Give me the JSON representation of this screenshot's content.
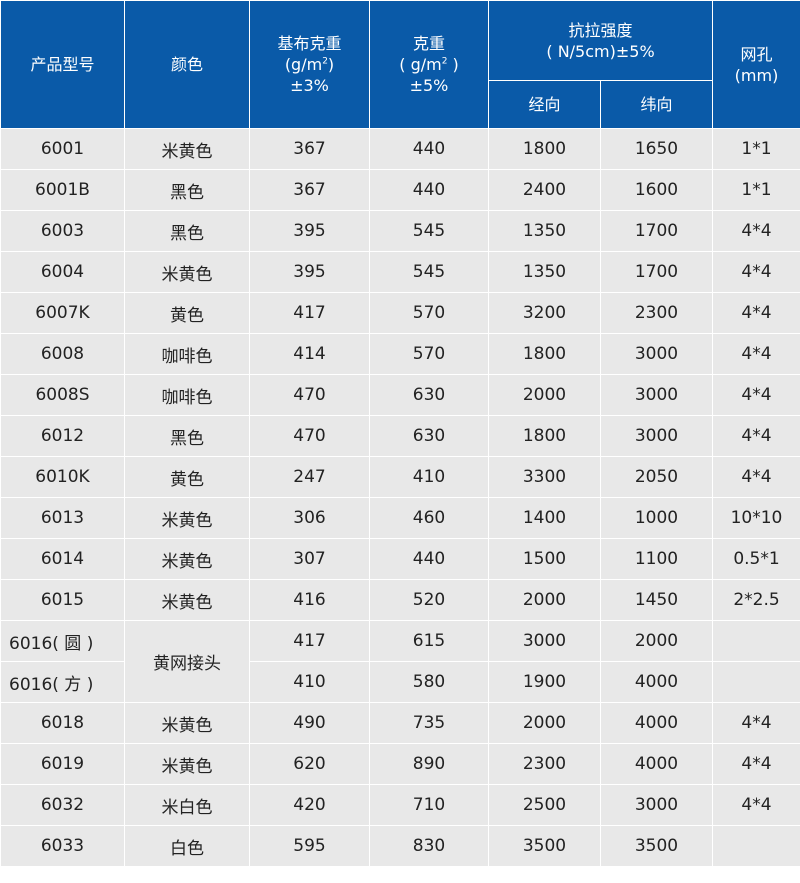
{
  "header": {
    "model": "产品型号",
    "color": "颜色",
    "base_weight": {
      "line1": "基布克重",
      "line2_pre": "(g/m",
      "line2_sup": "2",
      "line2_post": ")",
      "line3": "±3%"
    },
    "weight": {
      "line1": "克重",
      "line2_pre": "( g/m",
      "line2_sup": "2",
      "line2_post": " )",
      "line3": "±5%"
    },
    "strength": {
      "line1": "抗拉强度",
      "line2": "( N/5cm)±5%"
    },
    "warp": "经向",
    "weft": "纬向",
    "mesh": {
      "line1": "网孔",
      "line2": "(mm)"
    }
  },
  "rows": [
    {
      "model": "6001",
      "color": "米黄色",
      "base": "367",
      "weight": "440",
      "warp": "1800",
      "weft": "1650",
      "mesh": "1*1"
    },
    {
      "model": "6001B",
      "color": "黑色",
      "base": "367",
      "weight": "440",
      "warp": "2400",
      "weft": "1600",
      "mesh": "1*1"
    },
    {
      "model": "6003",
      "color": "黑色",
      "base": "395",
      "weight": "545",
      "warp": "1350",
      "weft": "1700",
      "mesh": "4*4"
    },
    {
      "model": "6004",
      "color": "米黄色",
      "base": "395",
      "weight": "545",
      "warp": "1350",
      "weft": "1700",
      "mesh": "4*4"
    },
    {
      "model": "6007K",
      "color": "黄色",
      "base": "417",
      "weight": "570",
      "warp": "3200",
      "weft": "2300",
      "mesh": "4*4"
    },
    {
      "model": "6008",
      "color": "咖啡色",
      "base": "414",
      "weight": "570",
      "warp": "1800",
      "weft": "3000",
      "mesh": "4*4"
    },
    {
      "model": "6008S",
      "color": "咖啡色",
      "base": "470",
      "weight": "630",
      "warp": "2000",
      "weft": "3000",
      "mesh": "4*4"
    },
    {
      "model": "6012",
      "color": "黑色",
      "base": "470",
      "weight": "630",
      "warp": "1800",
      "weft": "3000",
      "mesh": "4*4"
    },
    {
      "model": "6010K",
      "color": "黄色",
      "base": "247",
      "weight": "410",
      "warp": "3300",
      "weft": "2050",
      "mesh": "4*4"
    },
    {
      "model": "6013",
      "color": "米黄色",
      "base": "306",
      "weight": "460",
      "warp": "1400",
      "weft": "1000",
      "mesh": "10*10"
    },
    {
      "model": "6014",
      "color": "米黄色",
      "base": "307",
      "weight": "440",
      "warp": "1500",
      "weft": "1100",
      "mesh": "0.5*1"
    },
    {
      "model": "6015",
      "color": "米黄色",
      "base": "416",
      "weight": "520",
      "warp": "2000",
      "weft": "1450",
      "mesh": "2*2.5"
    }
  ],
  "merged": {
    "color": "黄网接头",
    "rows": [
      {
        "model": "6016( 圆 )",
        "base": "417",
        "weight": "615",
        "warp": "3000",
        "weft": "2000",
        "mesh": ""
      },
      {
        "model": "6016( 方 )",
        "base": "410",
        "weight": "580",
        "warp": "1900",
        "weft": "4000",
        "mesh": ""
      }
    ]
  },
  "rows_after": [
    {
      "model": "6018",
      "color": "米黄色",
      "base": "490",
      "weight": "735",
      "warp": "2000",
      "weft": "4000",
      "mesh": "4*4"
    },
    {
      "model": "6019",
      "color": "米黄色",
      "base": "620",
      "weight": "890",
      "warp": "2300",
      "weft": "4000",
      "mesh": "4*4"
    },
    {
      "model": "6032",
      "color": "米白色",
      "base": "420",
      "weight": "710",
      "warp": "2500",
      "weft": "3000",
      "mesh": "4*4"
    },
    {
      "model": "6033",
      "color": "白色",
      "base": "595",
      "weight": "830",
      "warp": "3500",
      "weft": "3500",
      "mesh": ""
    }
  ]
}
